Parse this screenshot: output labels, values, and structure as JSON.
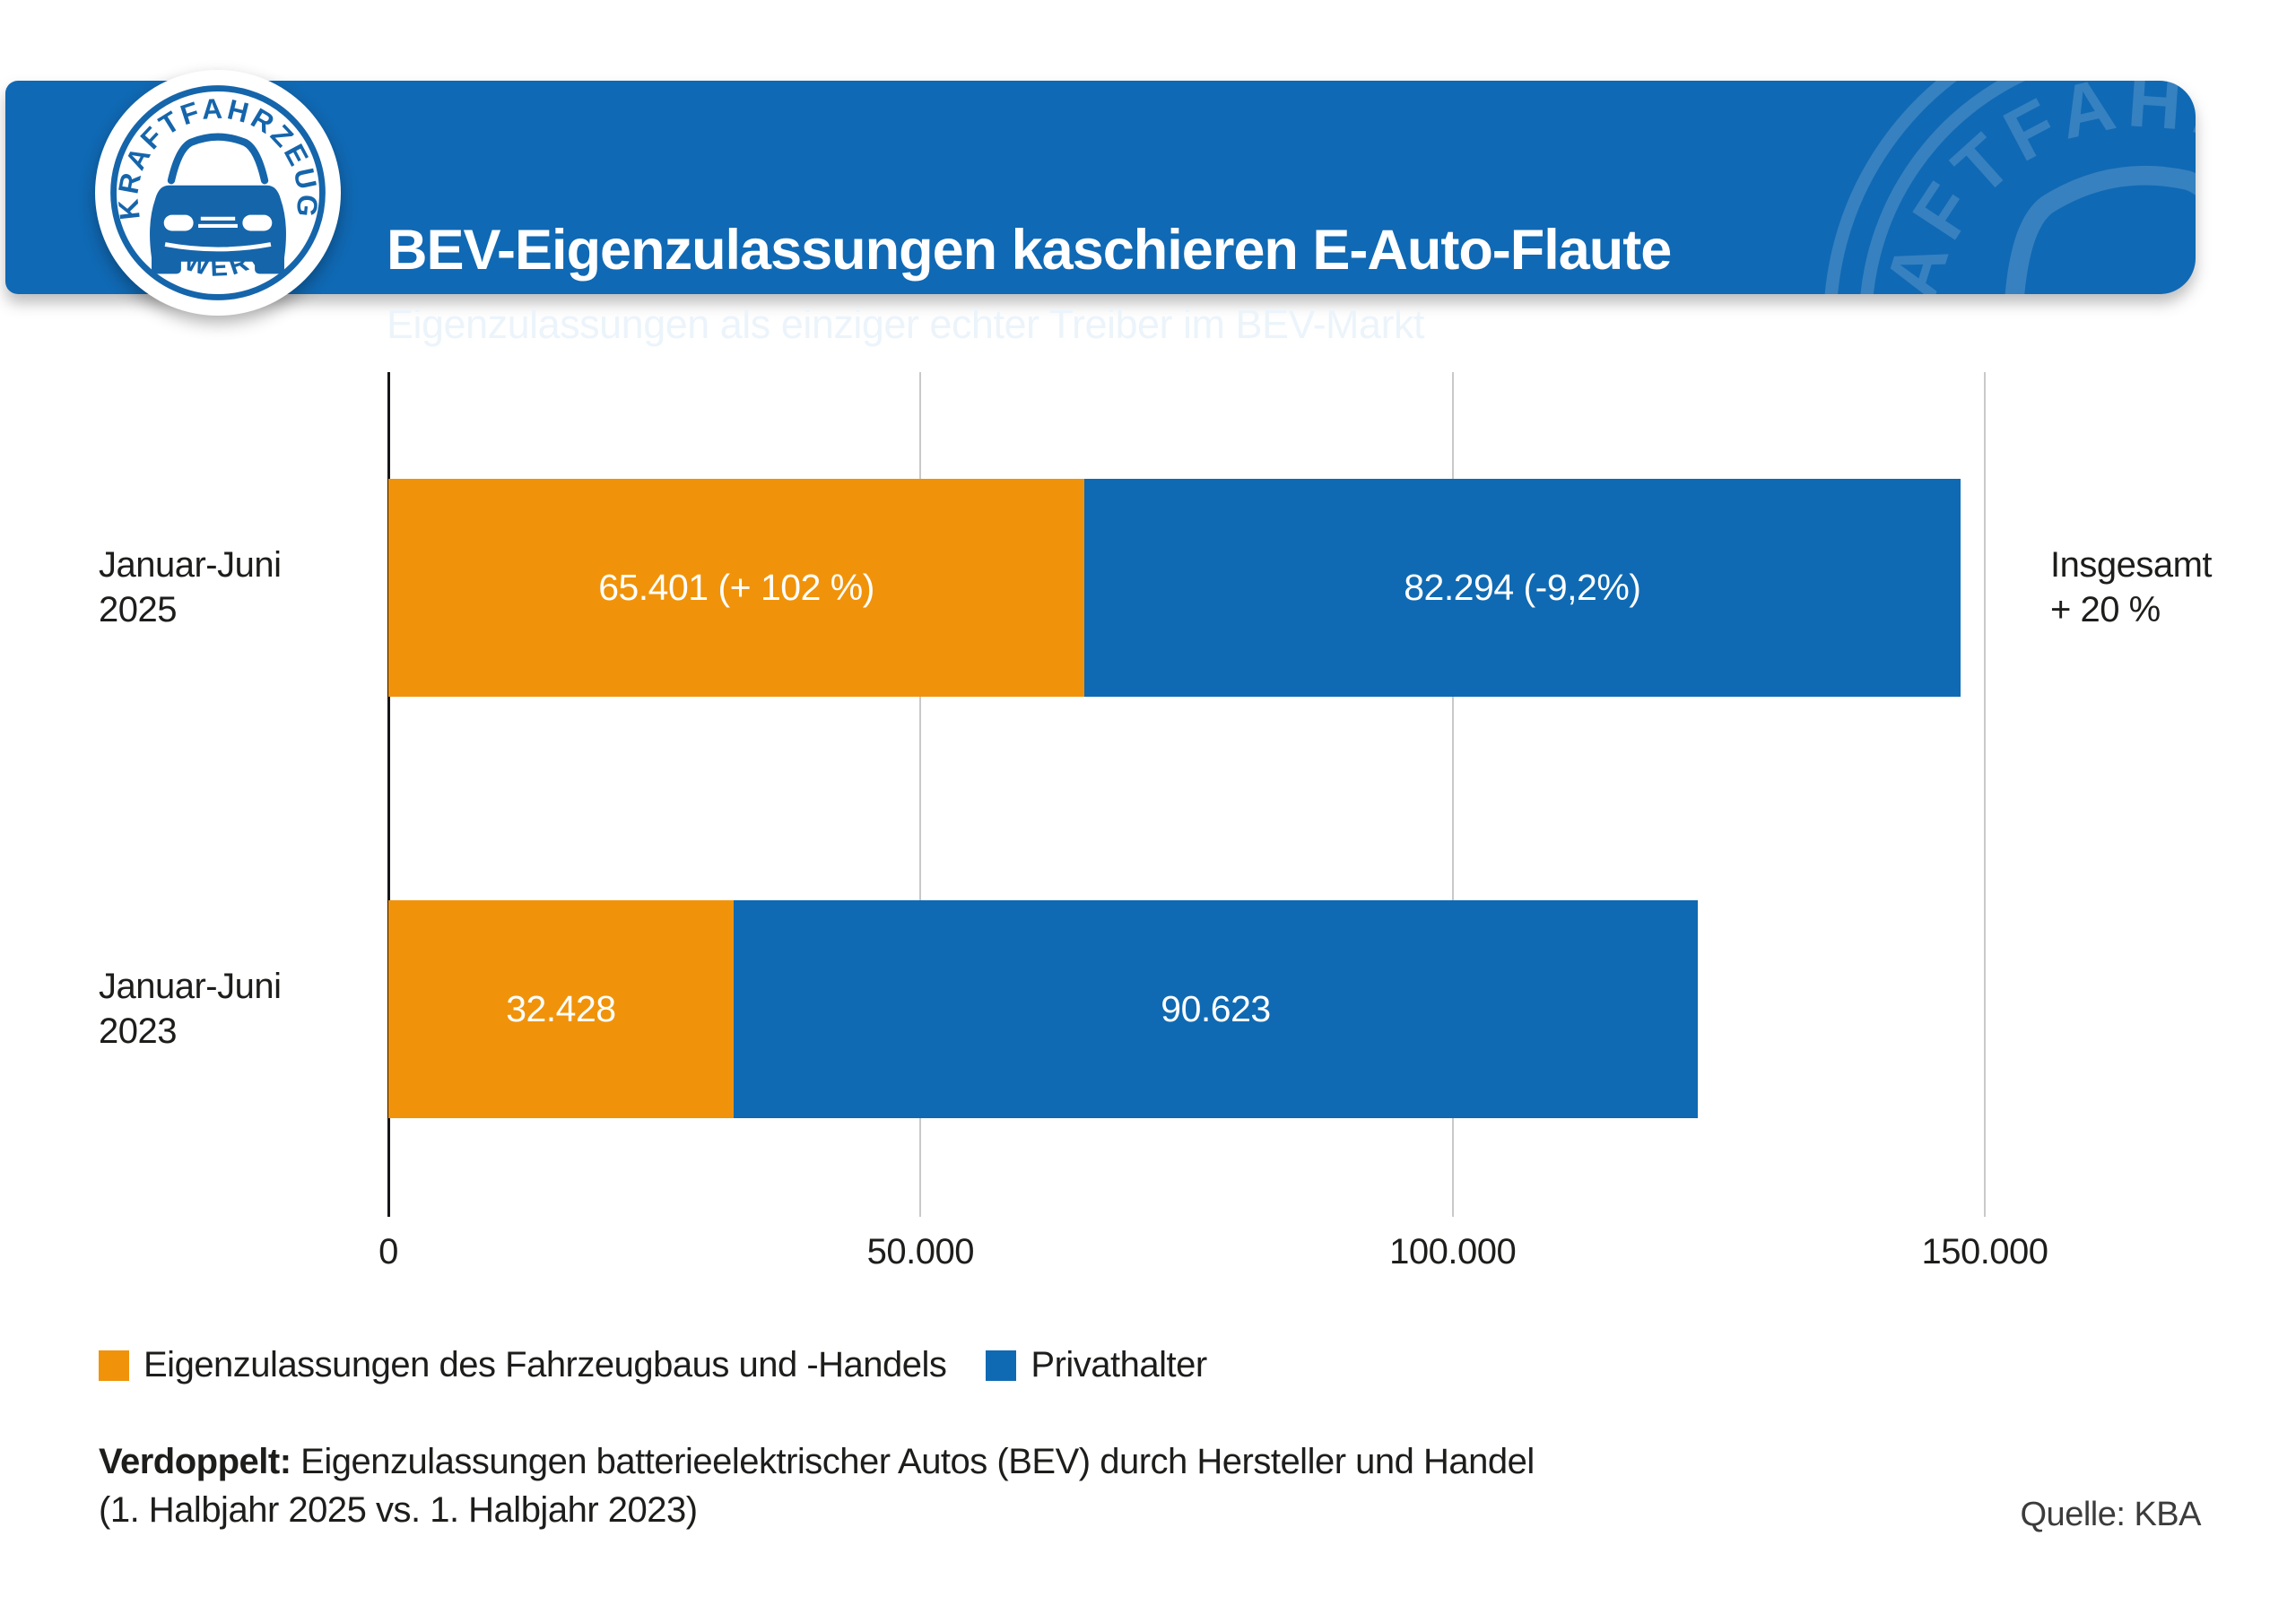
{
  "header": {
    "title": "BEV-Eigenzulassungen kaschieren E-Auto-Flaute",
    "subtitle": "Eigenzulassungen als einziger echter Treiber im BEV-Markt",
    "band_color": "#1069b4",
    "logo": {
      "name": "kfz-gewerbe-badge",
      "arc_top": "KRAFTFAHRZEUG",
      "arc_bottom": "GEWERBE",
      "badge_blue": "#1565ab"
    }
  },
  "chart_data": {
    "type": "bar",
    "orientation": "horizontal",
    "stacked": true,
    "grid": true,
    "legend_position": "bottom-left",
    "categories": [
      "Januar-Juni 2025",
      "Januar-Juni 2023"
    ],
    "category_lines": [
      [
        "Januar-Juni",
        "2025"
      ],
      [
        "Januar-Juni",
        "2023"
      ]
    ],
    "series": [
      {
        "name": "Eigenzulassungen des Fahrzeugbaus und -Handels",
        "color": "#f0930a",
        "values": [
          65401,
          32428
        ],
        "bar_labels": [
          "65.401 (+ 102 %)",
          "32.428"
        ]
      },
      {
        "name": "Privathalter",
        "color": "#0f6ab3",
        "values": [
          82294,
          90623
        ],
        "bar_labels": [
          "82.294 (-9,2%)",
          "90.623"
        ]
      }
    ],
    "totals_annotation": {
      "row": 0,
      "lines": [
        "Insgesamt",
        "+ 20 %"
      ]
    },
    "x_axis": {
      "min": 0,
      "max": 150000,
      "ticks": [
        {
          "value": 0,
          "label": "0"
        },
        {
          "value": 50000,
          "label": "50.000"
        },
        {
          "value": 100000,
          "label": "100.000"
        },
        {
          "value": 150000,
          "label": "150.000"
        }
      ]
    },
    "gridline_color": "#c9c9c9"
  },
  "footer": {
    "note_bold": "Verdoppelt:",
    "note_text": " Eigenzulassungen batterieelektrischer Autos (BEV) durch Hersteller und Handel",
    "note_line2": "(1. Halbjahr 2025 vs. 1. Halbjahr 2023)",
    "source": "Quelle: KBA"
  }
}
